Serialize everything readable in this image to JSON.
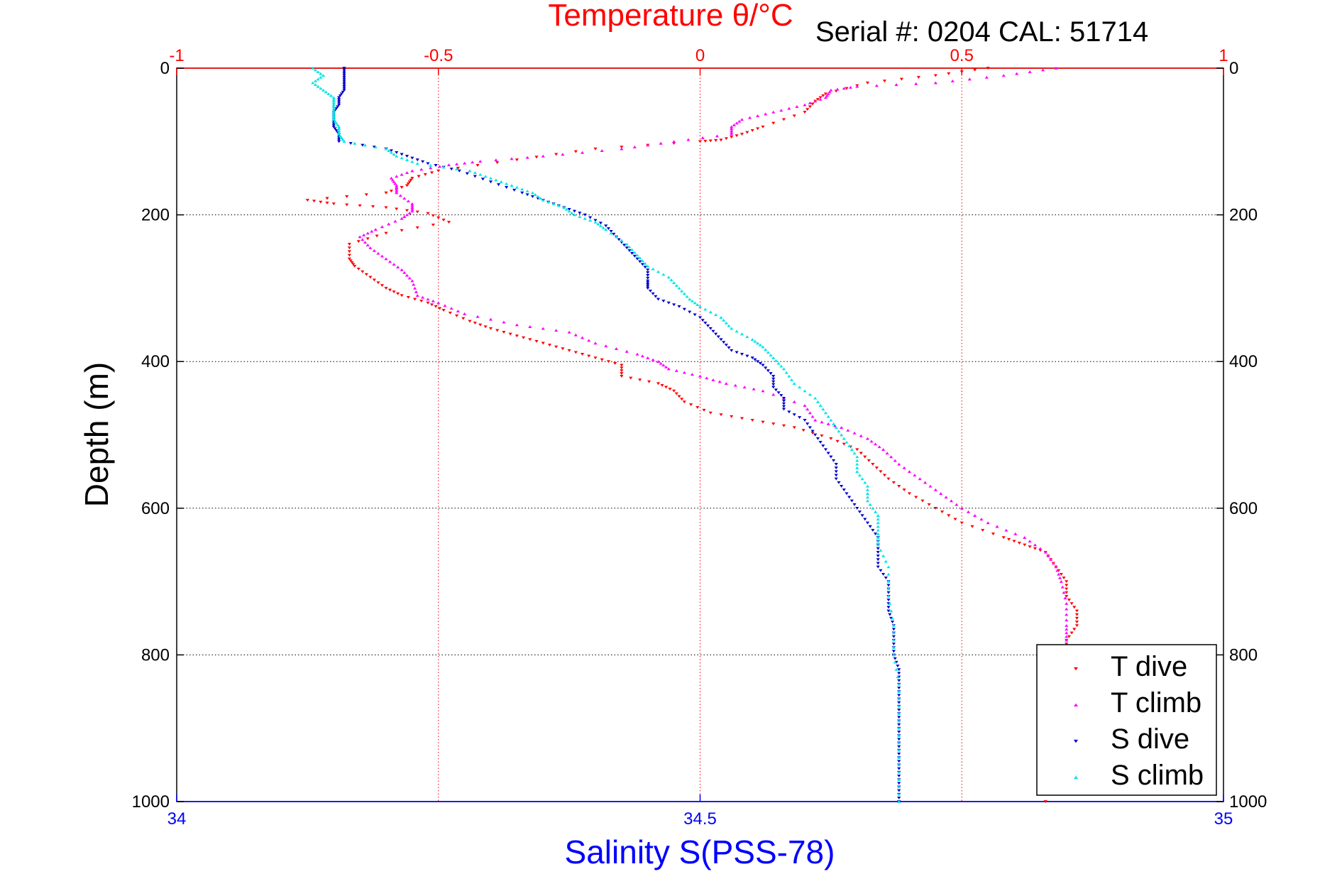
{
  "chart_data": {
    "type": "scatter",
    "title": "Temperature θ/°C",
    "annotation": "Serial #: 0204  CAL: 51714",
    "xlabel_top": "Temperature θ/°C",
    "xlabel_bottom": "Salinity S(PSS-78)",
    "ylabel": "Depth (m)",
    "x_top": {
      "range": [
        -1,
        1
      ],
      "ticks": [
        -1,
        -0.5,
        0,
        0.5,
        1
      ],
      "tick_labels": [
        "-1",
        "-0.5",
        "0",
        "0.5",
        "1"
      ],
      "grid": "vertical dotted red",
      "color": "#ff0000"
    },
    "x_bottom": {
      "range": [
        34,
        35
      ],
      "ticks": [
        34,
        34.5,
        35
      ],
      "tick_labels": [
        "34",
        "34.5",
        "35"
      ],
      "color": "#0000ff"
    },
    "y": {
      "range": [
        0,
        1000
      ],
      "reversed": true,
      "ticks": [
        0,
        200,
        400,
        600,
        800,
        1000
      ],
      "tick_labels": [
        "0",
        "200",
        "400",
        "600",
        "800",
        "1000"
      ],
      "grid": "horizontal dotted black"
    },
    "legend_position": "bottom-right",
    "series": [
      {
        "name": "T dive",
        "axis": "top",
        "color": "#ff0000",
        "marker": "triangle-down",
        "points": [
          [
            0.55,
            0
          ],
          [
            0.45,
            10
          ],
          [
            0.32,
            20
          ],
          [
            0.24,
            35
          ],
          [
            0.22,
            45
          ],
          [
            0.2,
            60
          ],
          [
            0.12,
            80
          ],
          [
            0.08,
            90
          ],
          [
            0.04,
            98
          ],
          [
            0.0,
            100
          ],
          [
            -0.2,
            110
          ],
          [
            -0.35,
            125
          ],
          [
            -0.5,
            140
          ],
          [
            -0.55,
            150
          ],
          [
            -0.56,
            160
          ],
          [
            -0.6,
            170
          ],
          [
            -0.75,
            180
          ],
          [
            -0.7,
            185
          ],
          [
            -0.6,
            190
          ],
          [
            -0.52,
            198
          ],
          [
            -0.48,
            210
          ],
          [
            -0.6,
            225
          ],
          [
            -0.67,
            240
          ],
          [
            -0.67,
            260
          ],
          [
            -0.66,
            270
          ],
          [
            -0.63,
            285
          ],
          [
            -0.6,
            300
          ],
          [
            -0.57,
            310
          ],
          [
            -0.52,
            320
          ],
          [
            -0.49,
            330
          ],
          [
            -0.44,
            345
          ],
          [
            -0.4,
            355
          ],
          [
            -0.35,
            365
          ],
          [
            -0.3,
            375
          ],
          [
            -0.25,
            385
          ],
          [
            -0.2,
            395
          ],
          [
            -0.15,
            405
          ],
          [
            -0.15,
            420
          ],
          [
            -0.08,
            430
          ],
          [
            -0.05,
            440
          ],
          [
            -0.03,
            455
          ],
          [
            0.02,
            470
          ],
          [
            0.1,
            480
          ],
          [
            0.18,
            490
          ],
          [
            0.25,
            505
          ],
          [
            0.3,
            520
          ],
          [
            0.33,
            540
          ],
          [
            0.36,
            560
          ],
          [
            0.4,
            580
          ],
          [
            0.45,
            600
          ],
          [
            0.5,
            620
          ],
          [
            0.58,
            640
          ],
          [
            0.62,
            650
          ],
          [
            0.66,
            660
          ],
          [
            0.68,
            680
          ],
          [
            0.7,
            700
          ],
          [
            0.7,
            720
          ],
          [
            0.72,
            740
          ],
          [
            0.72,
            760
          ],
          [
            0.7,
            780
          ],
          [
            0.7,
            800
          ],
          [
            0.66,
            1000
          ]
        ]
      },
      {
        "name": "T climb",
        "axis": "top",
        "color": "#ff00ff",
        "marker": "triangle-up",
        "points": [
          [
            0.68,
            0
          ],
          [
            0.58,
            10
          ],
          [
            0.45,
            20
          ],
          [
            0.3,
            25
          ],
          [
            0.25,
            30
          ],
          [
            0.24,
            40
          ],
          [
            0.2,
            50
          ],
          [
            0.14,
            60
          ],
          [
            0.08,
            70
          ],
          [
            0.06,
            80
          ],
          [
            0.06,
            90
          ],
          [
            -0.05,
            100
          ],
          [
            -0.15,
            110
          ],
          [
            -0.3,
            120
          ],
          [
            -0.42,
            127
          ],
          [
            -0.48,
            132
          ],
          [
            -0.55,
            140
          ],
          [
            -0.59,
            150
          ],
          [
            -0.58,
            160
          ],
          [
            -0.58,
            170
          ],
          [
            -0.55,
            185
          ],
          [
            -0.55,
            195
          ],
          [
            -0.57,
            205
          ],
          [
            -0.62,
            220
          ],
          [
            -0.65,
            230
          ],
          [
            -0.63,
            245
          ],
          [
            -0.6,
            260
          ],
          [
            -0.57,
            275
          ],
          [
            -0.55,
            290
          ],
          [
            -0.54,
            310
          ],
          [
            -0.5,
            320
          ],
          [
            -0.45,
            335
          ],
          [
            -0.35,
            350
          ],
          [
            -0.25,
            360
          ],
          [
            -0.2,
            375
          ],
          [
            -0.12,
            390
          ],
          [
            -0.08,
            400
          ],
          [
            -0.06,
            410
          ],
          [
            0.0,
            420
          ],
          [
            0.05,
            430
          ],
          [
            0.12,
            440
          ],
          [
            0.2,
            460
          ],
          [
            0.22,
            480
          ],
          [
            0.27,
            490
          ],
          [
            0.32,
            505
          ],
          [
            0.35,
            520
          ],
          [
            0.38,
            540
          ],
          [
            0.42,
            560
          ],
          [
            0.46,
            580
          ],
          [
            0.5,
            600
          ],
          [
            0.55,
            620
          ],
          [
            0.62,
            640
          ],
          [
            0.66,
            660
          ],
          [
            0.68,
            680
          ],
          [
            0.69,
            700
          ],
          [
            0.7,
            730
          ],
          [
            0.7,
            760
          ],
          [
            0.7,
            780
          ]
        ]
      },
      {
        "name": "S dive",
        "axis": "bottom",
        "color": "#0000cc",
        "marker": "triangle-down",
        "points": [
          [
            34.16,
            0
          ],
          [
            34.16,
            10
          ],
          [
            34.16,
            20
          ],
          [
            34.16,
            30
          ],
          [
            34.155,
            40
          ],
          [
            34.155,
            50
          ],
          [
            34.15,
            60
          ],
          [
            34.15,
            70
          ],
          [
            34.15,
            80
          ],
          [
            34.155,
            90
          ],
          [
            34.155,
            100
          ],
          [
            34.2,
            110
          ],
          [
            34.22,
            120
          ],
          [
            34.24,
            130
          ],
          [
            34.27,
            140
          ],
          [
            34.3,
            155
          ],
          [
            34.33,
            170
          ],
          [
            34.35,
            180
          ],
          [
            34.37,
            190
          ],
          [
            34.39,
            200
          ],
          [
            34.41,
            215
          ],
          [
            34.42,
            230
          ],
          [
            34.43,
            245
          ],
          [
            34.44,
            260
          ],
          [
            34.45,
            275
          ],
          [
            34.45,
            290
          ],
          [
            34.45,
            300
          ],
          [
            34.46,
            315
          ],
          [
            34.48,
            325
          ],
          [
            34.5,
            340
          ],
          [
            34.51,
            355
          ],
          [
            34.52,
            370
          ],
          [
            34.53,
            385
          ],
          [
            34.55,
            395
          ],
          [
            34.56,
            405
          ],
          [
            34.57,
            420
          ],
          [
            34.57,
            435
          ],
          [
            34.58,
            450
          ],
          [
            34.58,
            465
          ],
          [
            34.6,
            480
          ],
          [
            34.61,
            500
          ],
          [
            34.62,
            520
          ],
          [
            34.63,
            540
          ],
          [
            34.63,
            560
          ],
          [
            34.64,
            580
          ],
          [
            34.65,
            600
          ],
          [
            34.66,
            620
          ],
          [
            34.67,
            640
          ],
          [
            34.67,
            660
          ],
          [
            34.67,
            680
          ],
          [
            34.68,
            700
          ],
          [
            34.68,
            720
          ],
          [
            34.68,
            740
          ],
          [
            34.685,
            760
          ],
          [
            34.685,
            780
          ],
          [
            34.685,
            800
          ],
          [
            34.69,
            820
          ],
          [
            34.69,
            840
          ],
          [
            34.69,
            860
          ],
          [
            34.69,
            880
          ],
          [
            34.69,
            900
          ],
          [
            34.69,
            920
          ],
          [
            34.69,
            940
          ],
          [
            34.69,
            960
          ],
          [
            34.69,
            980
          ],
          [
            34.69,
            1000
          ]
        ]
      },
      {
        "name": "S climb",
        "axis": "bottom",
        "color": "#00e5e5",
        "marker": "triangle-up",
        "points": [
          [
            34.13,
            0
          ],
          [
            34.14,
            10
          ],
          [
            34.13,
            20
          ],
          [
            34.14,
            30
          ],
          [
            34.15,
            40
          ],
          [
            34.15,
            50
          ],
          [
            34.15,
            60
          ],
          [
            34.15,
            70
          ],
          [
            34.155,
            80
          ],
          [
            34.155,
            90
          ],
          [
            34.16,
            100
          ],
          [
            34.2,
            110
          ],
          [
            34.21,
            120
          ],
          [
            34.23,
            130
          ],
          [
            34.28,
            140
          ],
          [
            34.3,
            150
          ],
          [
            34.32,
            160
          ],
          [
            34.34,
            170
          ],
          [
            34.35,
            180
          ],
          [
            34.37,
            190
          ],
          [
            34.38,
            200
          ],
          [
            34.4,
            210
          ],
          [
            34.41,
            220
          ],
          [
            34.43,
            240
          ],
          [
            34.44,
            255
          ],
          [
            34.45,
            270
          ],
          [
            34.47,
            285
          ],
          [
            34.48,
            300
          ],
          [
            34.49,
            315
          ],
          [
            34.5,
            325
          ],
          [
            34.52,
            340
          ],
          [
            34.53,
            355
          ],
          [
            34.55,
            370
          ],
          [
            34.56,
            380
          ],
          [
            34.57,
            395
          ],
          [
            34.58,
            410
          ],
          [
            34.59,
            430
          ],
          [
            34.61,
            450
          ],
          [
            34.62,
            470
          ],
          [
            34.63,
            490
          ],
          [
            34.64,
            510
          ],
          [
            34.65,
            530
          ],
          [
            34.65,
            550
          ],
          [
            34.66,
            570
          ],
          [
            34.66,
            590
          ],
          [
            34.67,
            610
          ],
          [
            34.67,
            630
          ],
          [
            34.67,
            650
          ],
          [
            34.68,
            680
          ],
          [
            34.68,
            720
          ],
          [
            34.685,
            760
          ],
          [
            34.685,
            800
          ],
          [
            34.69,
            840
          ],
          [
            34.69,
            880
          ],
          [
            34.69,
            920
          ],
          [
            34.69,
            960
          ],
          [
            34.69,
            1000
          ]
        ]
      }
    ]
  }
}
